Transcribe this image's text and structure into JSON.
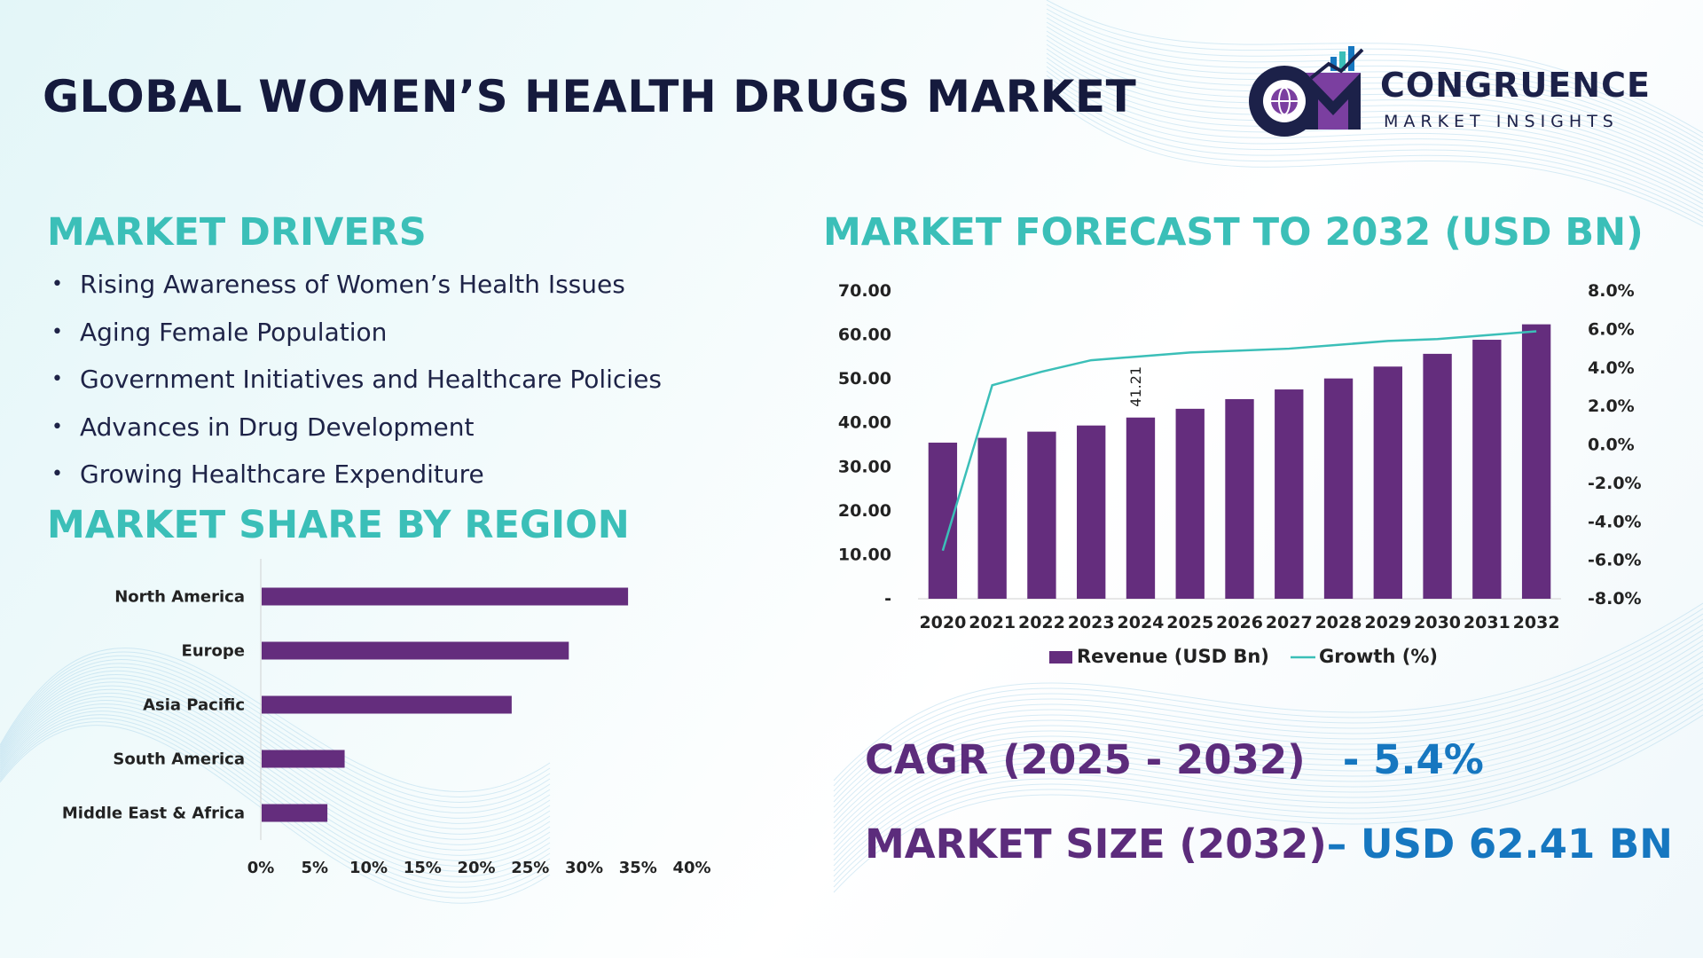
{
  "header": {
    "title": "GLOBAL WOMEN’S HEALTH DRUGS MARKET",
    "logo_monogram": "CM",
    "logo_name": "CONGRUENCE",
    "logo_tagline": "MARKET INSIGHTS"
  },
  "drivers": {
    "title": "MARKET DRIVERS",
    "bullet": "•",
    "items": [
      "Rising Awareness of Women’s Health Issues",
      "Aging Female Population",
      "Government Initiatives and Healthcare Policies",
      "Advances in Drug Development",
      "Growing Healthcare Expenditure"
    ]
  },
  "region": {
    "title": "MARKET SHARE BY REGION"
  },
  "forecast": {
    "title": "MARKET FORECAST TO 2032 (USD BN)"
  },
  "kpis": {
    "cagr_label": "CAGR (2025 - 2032)",
    "cagr_value": "- 5.4%",
    "size_label": "MARKET SIZE (2032)",
    "size_value": "– USD 62.41 BN"
  },
  "colors": {
    "bar": "#642d7d",
    "line": "#3bbfb8",
    "title_teal": "#3bbfb8",
    "dark_navy": "#151a3d",
    "kpi_purple": "#5c2c7c",
    "kpi_blue": "#1677c0"
  },
  "chart_data": [
    {
      "type": "bar",
      "orientation": "horizontal",
      "categories": [
        "North America",
        "Europe",
        "Asia Pacific",
        "South America",
        "Middle East & Africa"
      ],
      "values": [
        34,
        28.5,
        23.2,
        7.7,
        6.1
      ],
      "xlim": [
        0,
        40
      ],
      "x_ticks": [
        "0%",
        "5%",
        "10%",
        "15%",
        "20%",
        "25%",
        "30%",
        "35%",
        "40%"
      ],
      "grid": false,
      "legend": "none"
    },
    {
      "type": "bar",
      "categories": [
        "2020",
        "2021",
        "2022",
        "2023",
        "2024",
        "2025",
        "2026",
        "2027",
        "2028",
        "2029",
        "2030",
        "2031",
        "2032"
      ],
      "series": [
        {
          "name": "Revenue (USD Bn)",
          "type": "bar",
          "axis": "left",
          "values": [
            35.5,
            36.6,
            38.0,
            39.4,
            41.21,
            43.2,
            45.4,
            47.6,
            50.1,
            52.8,
            55.7,
            58.9,
            62.41
          ]
        },
        {
          "name": "Growth (%)",
          "type": "line",
          "axis": "right",
          "values": [
            -5.5,
            3.1,
            3.8,
            4.4,
            4.6,
            4.8,
            4.9,
            5.0,
            5.2,
            5.4,
            5.5,
            5.7,
            5.9
          ]
        }
      ],
      "data_labels": [
        {
          "category": "2024",
          "text": "41.21"
        }
      ],
      "ylim_left": [
        0,
        70
      ],
      "y_ticks_left": [
        "-",
        "10.00",
        "20.00",
        "30.00",
        "40.00",
        "50.00",
        "60.00",
        "70.00"
      ],
      "ylim_right": [
        -8,
        8
      ],
      "y_ticks_right": [
        "-8.0%",
        "-6.0%",
        "-4.0%",
        "-2.0%",
        "0.0%",
        "2.0%",
        "4.0%",
        "6.0%",
        "8.0%"
      ],
      "grid": false,
      "legend": "bottom"
    }
  ]
}
